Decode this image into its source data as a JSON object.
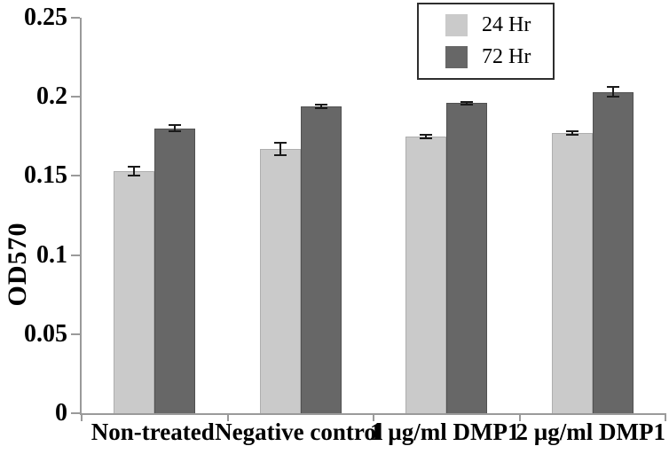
{
  "chart_data": {
    "type": "bar",
    "ylabel": "OD570",
    "xlabel": "",
    "categories": [
      "Non-treated",
      "Negative control",
      "1 µg/ml DMP1",
      "2 µg/ml DMP1"
    ],
    "series": [
      {
        "name": "24 Hr",
        "color": "#cacaca",
        "border_color": "#aeaeae",
        "values": [
          0.153,
          0.167,
          0.175,
          0.177
        ],
        "errors": [
          0.003,
          0.004,
          0.001,
          0.001
        ]
      },
      {
        "name": "72 Hr",
        "color": "#676767",
        "border_color": "#515151",
        "values": [
          0.18,
          0.194,
          0.196,
          0.203
        ],
        "errors": [
          0.002,
          0.001,
          0.001,
          0.003
        ]
      }
    ],
    "ylim": [
      0,
      0.25
    ],
    "ytick_step": 0.05,
    "ytick_labels": [
      "0",
      "0.05",
      "0.1",
      "0.15",
      "0.2",
      "0.25"
    ],
    "grid": false,
    "legend_position": "top-right",
    "error_bars": true
  },
  "colors": {
    "axis": "#9a9a9a",
    "text": "#000000",
    "error_bar": "#1a1a1a",
    "legend_border": "#2e2e2e",
    "background": "#ffffff"
  }
}
